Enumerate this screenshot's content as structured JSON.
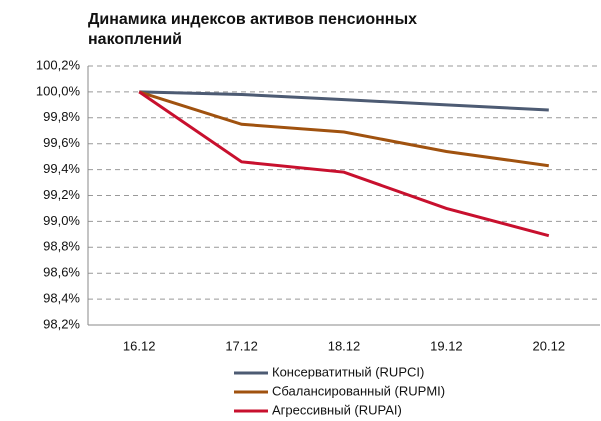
{
  "chart_data": {
    "type": "line",
    "title": "Динамика индексов активов пенсионных накоплений",
    "categories": [
      "16.12",
      "17.12",
      "18.12",
      "19.12",
      "20.12"
    ],
    "series": [
      {
        "name": "Консерватитный (RUPCI)",
        "color": "#4d5b73",
        "values": [
          100.0,
          99.98,
          99.94,
          99.9,
          99.86
        ]
      },
      {
        "name": "Сбалансированный (RUPMI)",
        "color": "#a0520f",
        "values": [
          100.0,
          99.75,
          99.69,
          99.54,
          99.43
        ]
      },
      {
        "name": "Агрессивный (RUPAI)",
        "color": "#c8102e",
        "values": [
          100.0,
          99.46,
          99.38,
          99.1,
          98.89
        ]
      }
    ],
    "ylim": [
      98.2,
      100.2
    ],
    "yticks": [
      {
        "value": 98.2,
        "label": "98,2%"
      },
      {
        "value": 98.4,
        "label": "98,4%"
      },
      {
        "value": 98.6,
        "label": "98,6%"
      },
      {
        "value": 98.8,
        "label": "98,8%"
      },
      {
        "value": 99.0,
        "label": "99,0%"
      },
      {
        "value": 99.2,
        "label": "99,2%"
      },
      {
        "value": 99.4,
        "label": "99,4%"
      },
      {
        "value": 99.6,
        "label": "99,6%"
      },
      {
        "value": 99.8,
        "label": "99,8%"
      },
      {
        "value": 100.0,
        "label": "100,0%"
      },
      {
        "value": 100.2,
        "label": "100,2%"
      }
    ],
    "grid": true,
    "legend": "bottom"
  }
}
